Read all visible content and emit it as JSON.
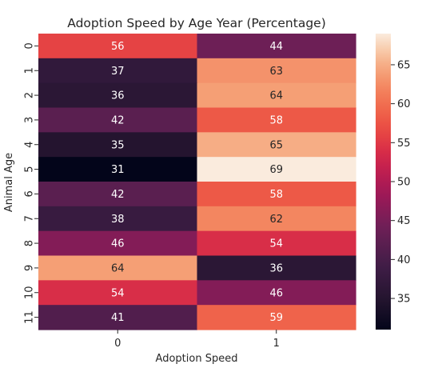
{
  "chart_data": {
    "type": "heatmap",
    "title": "Adoption Speed by Age Year (Percentage)",
    "xlabel": "Adoption Speed",
    "ylabel": "Animal Age",
    "x_categories": [
      "0",
      "1"
    ],
    "y_categories": [
      "0",
      "1",
      "2",
      "3",
      "4",
      "5",
      "6",
      "7",
      "8",
      "9",
      "10",
      "11"
    ],
    "values": [
      [
        56,
        44
      ],
      [
        37,
        63
      ],
      [
        36,
        64
      ],
      [
        42,
        58
      ],
      [
        35,
        65
      ],
      [
        31,
        69
      ],
      [
        42,
        58
      ],
      [
        38,
        62
      ],
      [
        46,
        54
      ],
      [
        64,
        36
      ],
      [
        54,
        46
      ],
      [
        41,
        59
      ]
    ],
    "colorbar": {
      "min": 31,
      "max": 69,
      "ticks": [
        35,
        40,
        45,
        50,
        55,
        60,
        65
      ]
    },
    "colormap": "rocket",
    "grid": false,
    "legend": "colorbar-right"
  }
}
